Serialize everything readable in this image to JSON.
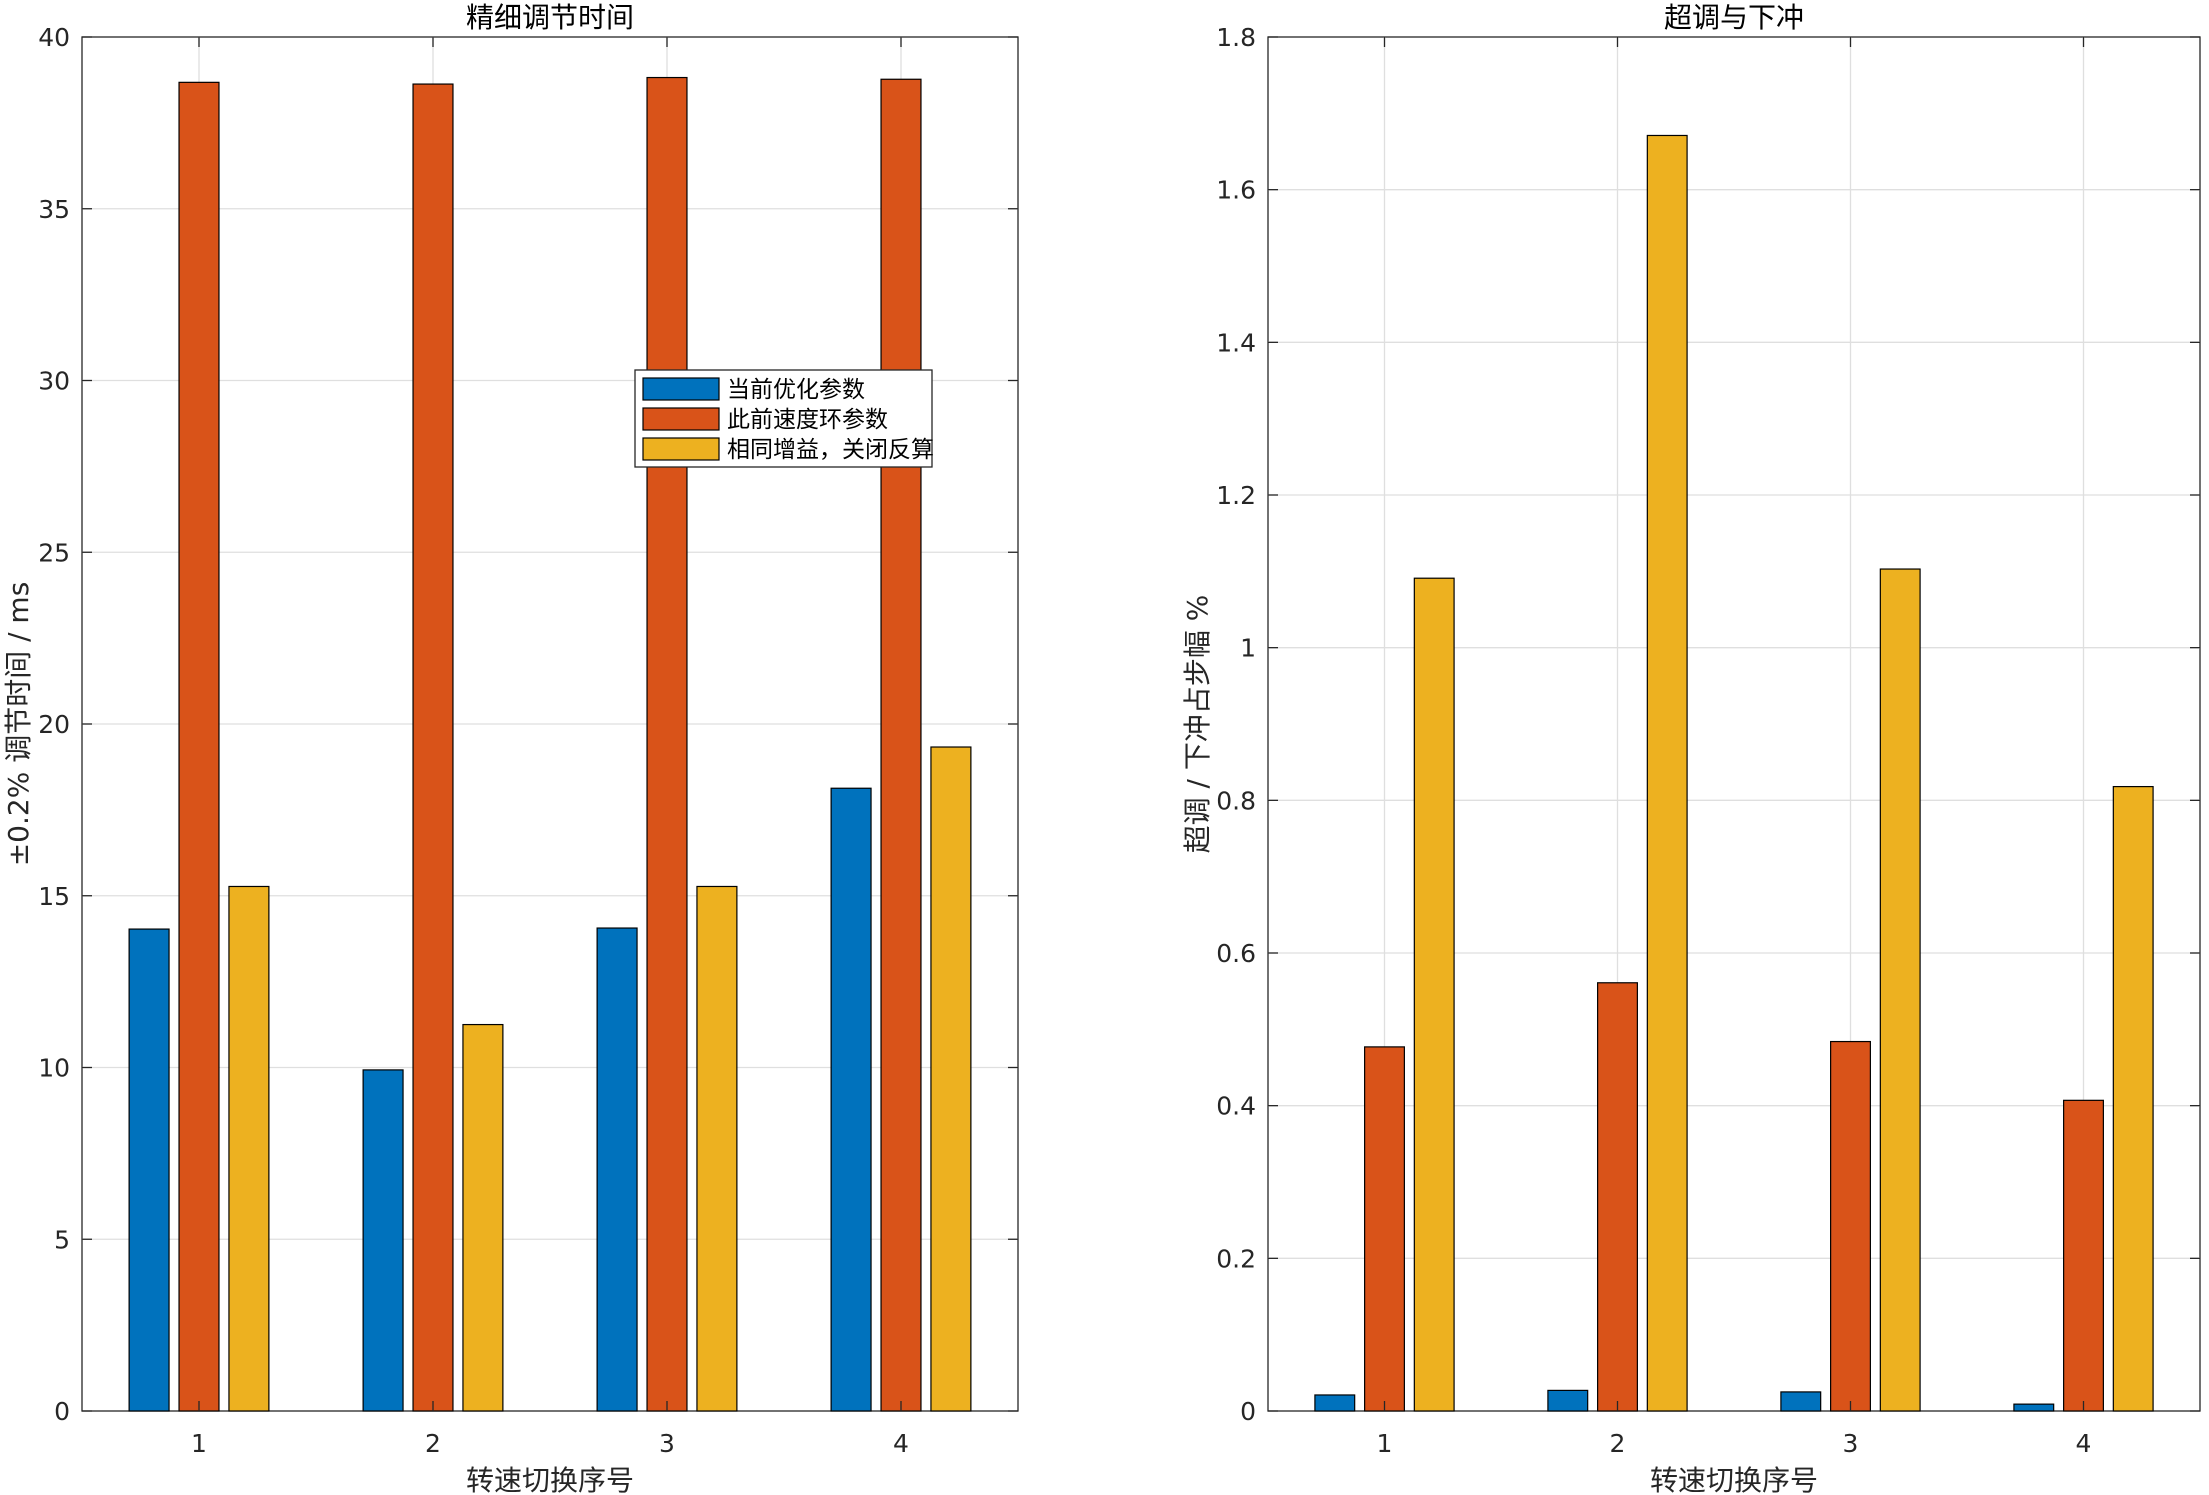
{
  "chart_data": [
    {
      "type": "bar",
      "title": "精细调节时间",
      "xlabel": "转速切换序号",
      "ylabel": "±0.2% 调节时间 / ms",
      "categories": [
        "1",
        "2",
        "3",
        "4"
      ],
      "ylim": [
        0,
        40
      ],
      "yticks": [
        "0",
        "5",
        "10",
        "15",
        "20",
        "25",
        "30",
        "35",
        "40"
      ],
      "ytick_values": [
        0,
        5,
        10,
        15,
        20,
        25,
        30,
        35,
        40
      ],
      "grid": true,
      "legend": "center",
      "series": [
        {
          "name": "当前优化参数",
          "color": "#0072bd",
          "values": [
            14.03,
            9.93,
            14.06,
            18.13
          ]
        },
        {
          "name": "此前速度环参数",
          "color": "#d95319",
          "values": [
            38.68,
            38.63,
            38.82,
            38.77
          ]
        },
        {
          "name": "相同增益，关闭反算",
          "color": "#edb120",
          "values": [
            15.27,
            11.25,
            15.27,
            19.33
          ]
        }
      ]
    },
    {
      "type": "bar",
      "title": "超调与下冲",
      "xlabel": "转速切换序号",
      "ylabel": "超调 / 下冲占步幅 %",
      "categories": [
        "1",
        "2",
        "3",
        "4"
      ],
      "ylim": [
        0,
        1.8
      ],
      "yticks": [
        "0",
        "0.2",
        "0.4",
        "0.6",
        "0.8",
        "1",
        "1.2",
        "1.4",
        "1.6",
        "1.8"
      ],
      "ytick_values": [
        0,
        0.2,
        0.4,
        0.6,
        0.8,
        1.0,
        1.2,
        1.4,
        1.6,
        1.8
      ],
      "grid": true,
      "legend": "none",
      "series": [
        {
          "name": "当前优化参数",
          "color": "#0072bd",
          "values": [
            0.021,
            0.027,
            0.025,
            0.009
          ]
        },
        {
          "name": "此前速度环参数",
          "color": "#d95319",
          "values": [
            0.477,
            0.561,
            0.484,
            0.407
          ]
        },
        {
          "name": "相同增益，关闭反算",
          "color": "#edb120",
          "values": [
            1.091,
            1.671,
            1.103,
            0.818
          ]
        }
      ]
    }
  ]
}
